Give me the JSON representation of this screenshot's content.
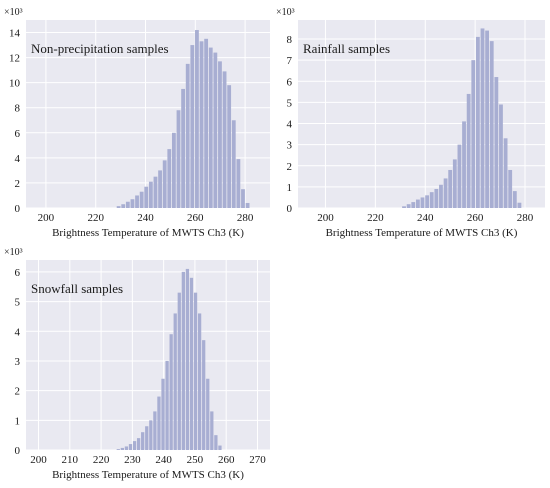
{
  "colors": {
    "plot_background": "#e9e9f1",
    "grid": "#ffffff",
    "bar": "#a8aed2"
  },
  "chart_data": [
    {
      "type": "bar",
      "title": "Non-precipitation samples",
      "xlabel": "Brightness Temperature of MWTS Ch3 (K)",
      "ylabel": "",
      "y_multiplier_label": "×10³",
      "xlim": [
        192,
        290
      ],
      "ylim": [
        0,
        15
      ],
      "xticks": [
        200,
        220,
        240,
        260,
        280
      ],
      "yticks": [
        0,
        2,
        4,
        6,
        8,
        10,
        12,
        14
      ],
      "bin_width": 1.85,
      "x": [
        229.2,
        231.05,
        232.9,
        234.75,
        236.6,
        238.45,
        240.3,
        242.15,
        244.0,
        245.85,
        247.7,
        249.55,
        251.4,
        253.25,
        255.1,
        256.95,
        258.8,
        260.65,
        262.5,
        264.35,
        266.2,
        268.05,
        269.9,
        271.75,
        273.6,
        275.45,
        277.3,
        279.15,
        281.0
      ],
      "values": [
        0.15,
        0.3,
        0.5,
        0.7,
        1.0,
        1.3,
        1.7,
        2.1,
        2.5,
        3.0,
        3.8,
        4.7,
        6.0,
        7.8,
        9.5,
        11.5,
        13.0,
        14.2,
        13.3,
        13.5,
        12.8,
        12.4,
        11.7,
        10.9,
        9.8,
        7.0,
        3.9,
        1.5,
        0.4
      ]
    },
    {
      "type": "bar",
      "title": "Rainfall samples",
      "xlabel": "Brightness Temperature of MWTS Ch3 (K)",
      "ylabel": "",
      "y_multiplier_label": "×10³",
      "xlim": [
        189,
        288
      ],
      "ylim": [
        0,
        8.9
      ],
      "xticks": [
        200,
        220,
        240,
        260,
        280
      ],
      "yticks": [
        0,
        1,
        2,
        3,
        4,
        5,
        6,
        7,
        8
      ],
      "bin_width": 1.85,
      "x": [
        231.5,
        233.35,
        235.2,
        237.05,
        238.9,
        240.75,
        242.6,
        244.45,
        246.3,
        248.15,
        250.0,
        251.85,
        253.7,
        255.55,
        257.4,
        259.25,
        261.1,
        262.95,
        264.8,
        266.65,
        268.5,
        270.35,
        272.2,
        274.05,
        275.9,
        277.75
      ],
      "values": [
        0.08,
        0.18,
        0.28,
        0.4,
        0.5,
        0.6,
        0.75,
        0.9,
        1.1,
        1.4,
        1.8,
        2.3,
        3.0,
        4.1,
        5.4,
        7.0,
        8.1,
        8.5,
        8.4,
        7.9,
        6.2,
        4.9,
        3.3,
        1.8,
        0.8,
        0.25
      ]
    },
    {
      "type": "bar",
      "title": "Snowfall samples",
      "xlabel": "Brightness Temperature of MWTS Ch3 (K)",
      "ylabel": "",
      "y_multiplier_label": "×10³",
      "xlim": [
        196,
        274
      ],
      "ylim": [
        0,
        6.4
      ],
      "xticks": [
        200,
        210,
        220,
        230,
        240,
        250,
        260,
        270
      ],
      "yticks": [
        0,
        1,
        2,
        3,
        4,
        5,
        6
      ],
      "bin_width": 1.3,
      "x": [
        225.5,
        226.8,
        228.1,
        229.4,
        230.7,
        232.0,
        233.3,
        234.6,
        235.9,
        237.2,
        238.5,
        239.8,
        241.1,
        242.4,
        243.7,
        245.0,
        246.3,
        247.6,
        248.9,
        250.2,
        251.5,
        252.8,
        254.1,
        255.4,
        256.7,
        258.0
      ],
      "values": [
        0.03,
        0.07,
        0.12,
        0.2,
        0.3,
        0.4,
        0.6,
        0.8,
        1.0,
        1.3,
        1.8,
        2.4,
        3.0,
        3.9,
        4.6,
        5.3,
        6.0,
        6.1,
        5.8,
        5.3,
        4.6,
        3.7,
        2.4,
        1.3,
        0.5,
        0.15
      ]
    }
  ]
}
